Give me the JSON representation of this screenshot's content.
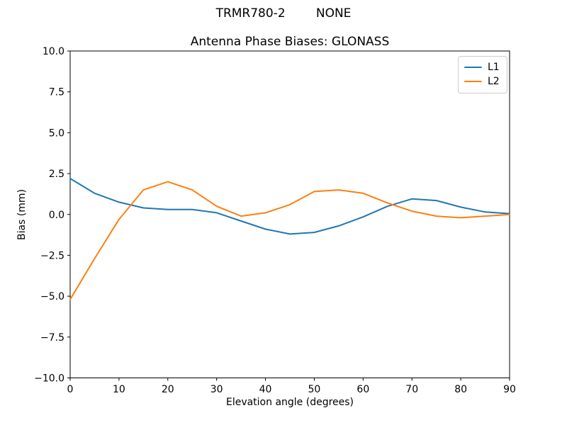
{
  "chart_data": {
    "type": "line",
    "suptitle": "TRMR780-2        NONE",
    "title": "Antenna Phase Biases: GLONASS",
    "xlabel": "Elevation angle (degrees)",
    "ylabel": "Bias (mm)",
    "xlim": [
      0,
      90
    ],
    "ylim": [
      -10,
      10
    ],
    "grid": false,
    "legend_position": "upper right",
    "xticks": [
      0,
      10,
      20,
      30,
      40,
      50,
      60,
      70,
      80,
      90
    ],
    "yticks": [
      10.0,
      7.5,
      5.0,
      2.5,
      0.0,
      -2.5,
      -5.0,
      -7.5,
      -10.0
    ],
    "ytick_labels": [
      "10.0",
      "7.5",
      "5.0",
      "2.5",
      "0.0",
      "−2.5",
      "−5.0",
      "−7.5",
      "−10.0"
    ],
    "x": [
      0,
      5,
      10,
      15,
      20,
      25,
      30,
      35,
      40,
      45,
      50,
      55,
      60,
      65,
      70,
      75,
      80,
      85,
      90
    ],
    "series": [
      {
        "name": "L1",
        "color": "#1f77b4",
        "values": [
          2.2,
          1.3,
          0.75,
          0.4,
          0.3,
          0.3,
          0.1,
          -0.4,
          -0.9,
          -1.2,
          -1.1,
          -0.7,
          -0.15,
          0.5,
          0.95,
          0.85,
          0.45,
          0.15,
          0.05
        ]
      },
      {
        "name": "L2",
        "color": "#ff7f0e",
        "values": [
          -5.2,
          -2.7,
          -0.3,
          1.5,
          2.0,
          1.5,
          0.5,
          -0.1,
          0.1,
          0.6,
          1.4,
          1.5,
          1.3,
          0.7,
          0.2,
          -0.1,
          -0.2,
          -0.1,
          0.0
        ]
      }
    ],
    "colors": {
      "background": "#ffffff",
      "axes": "#000000",
      "text": "#000000",
      "legend_border": "#cccccc"
    }
  }
}
